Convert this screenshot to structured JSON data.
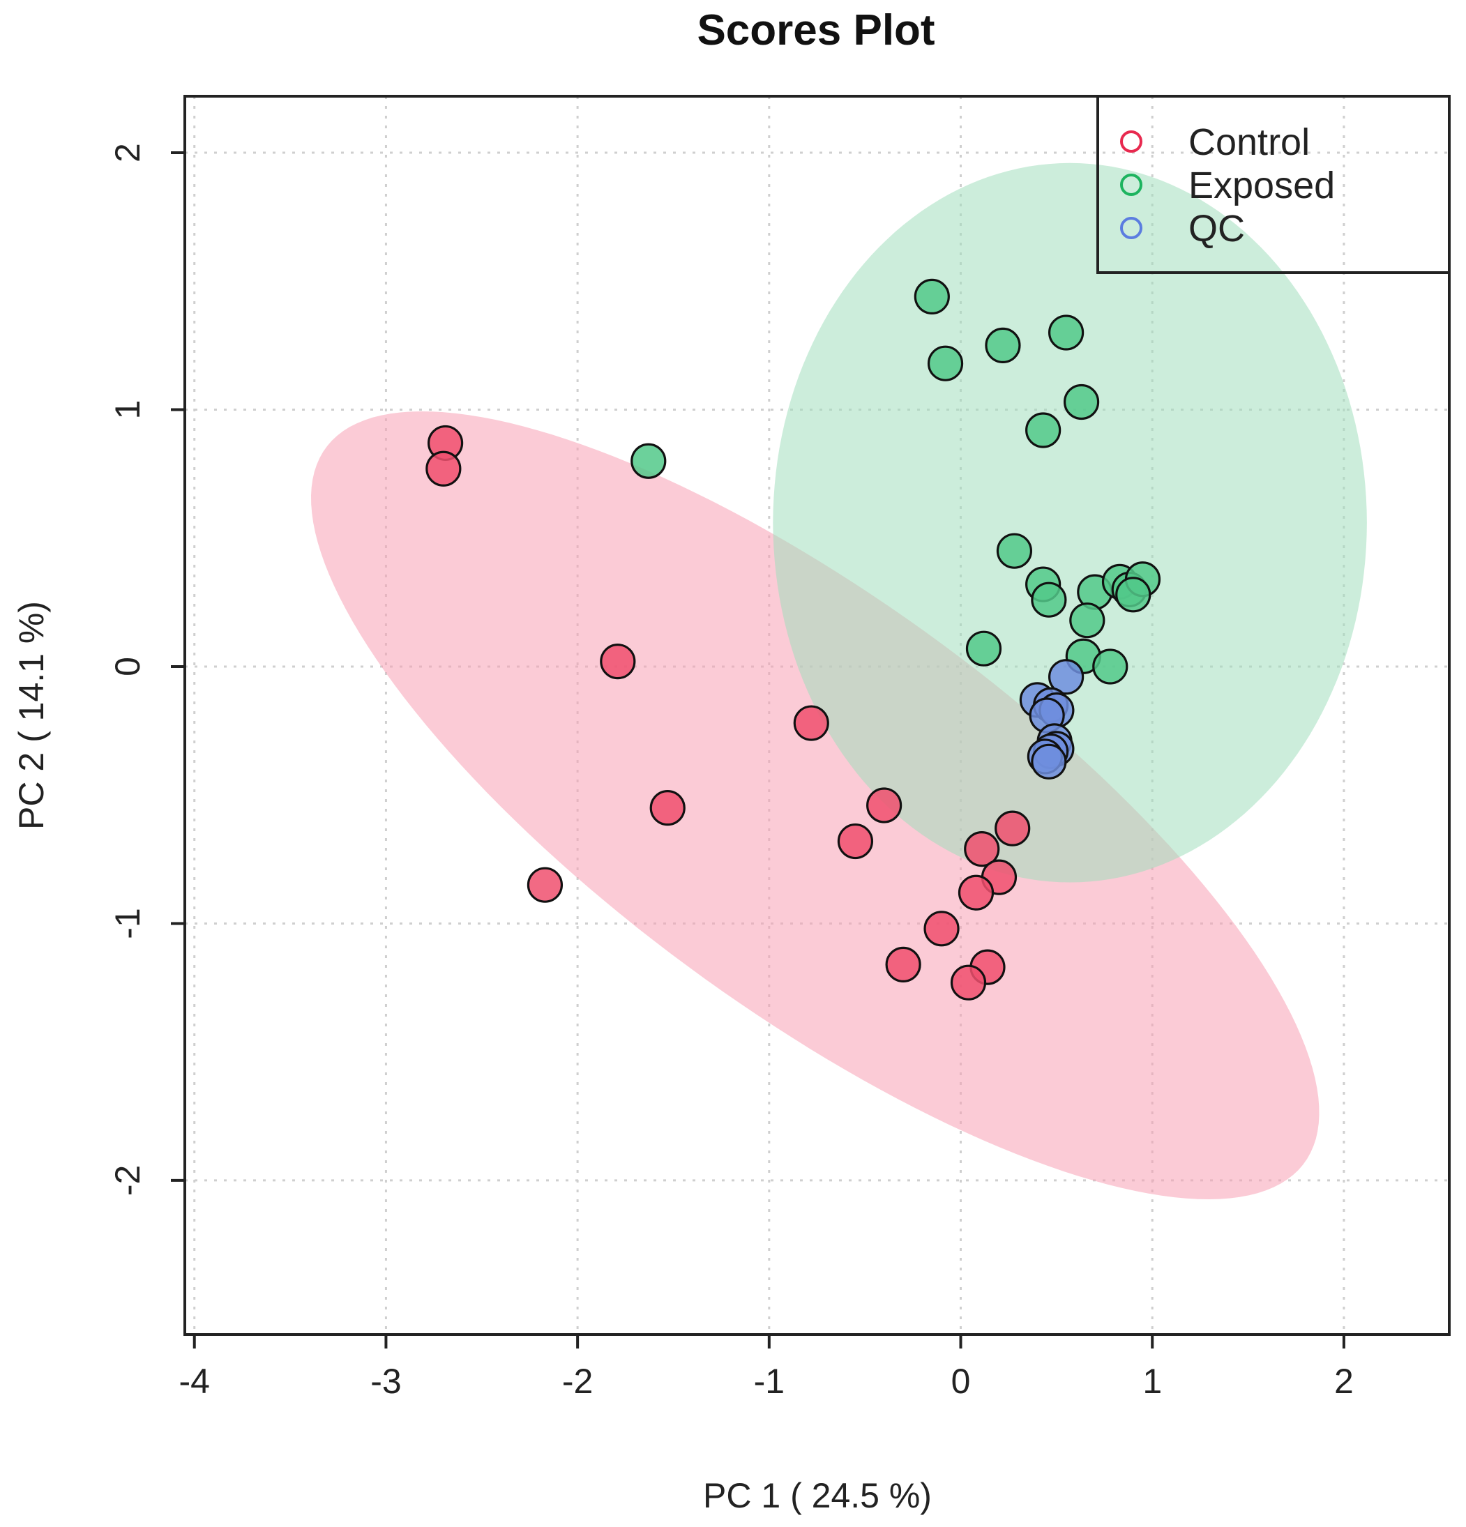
{
  "chart_data": {
    "type": "scatter",
    "title": "Scores Plot",
    "xlabel": "PC 1 ( 24.5 %)",
    "ylabel": "PC 2 ( 14.1 %)",
    "xlim": [
      -4.05,
      2.55
    ],
    "ylim": [
      -2.6,
      2.22
    ],
    "xticks": [
      -4,
      -3,
      -2,
      -1,
      0,
      1,
      2
    ],
    "yticks": [
      -2,
      -1,
      0,
      1,
      2
    ],
    "xtick_labels": [
      "-4",
      "-3",
      "-2",
      "-1",
      "0",
      "1",
      "2"
    ],
    "ytick_labels": [
      "-2",
      "-1",
      "0",
      "1",
      "2"
    ],
    "grid": true,
    "legend": {
      "position": "top-right",
      "entries": [
        "Control",
        "Exposed",
        "QC"
      ]
    },
    "series": [
      {
        "name": "Control",
        "marker_color": "#f0506e",
        "legend_color": "#e8294f",
        "fill_color": "#f7a1b5",
        "points": [
          [
            -2.69,
            0.87
          ],
          [
            -2.7,
            0.77
          ],
          [
            -1.79,
            0.02
          ],
          [
            -0.78,
            -0.22
          ],
          [
            -1.53,
            -0.55
          ],
          [
            -2.17,
            -0.85
          ],
          [
            -0.4,
            -0.54
          ],
          [
            -0.55,
            -0.68
          ],
          [
            0.27,
            -0.63
          ],
          [
            0.11,
            -0.71
          ],
          [
            0.2,
            -0.82
          ],
          [
            0.08,
            -0.88
          ],
          [
            -0.1,
            -1.02
          ],
          [
            -0.3,
            -1.16
          ],
          [
            0.14,
            -1.17
          ],
          [
            0.04,
            -1.23
          ]
        ],
        "ellipse": {
          "cx": -0.76,
          "cy": -0.54,
          "rx": 2.92,
          "ry": 0.865,
          "angle_deg": -27
        }
      },
      {
        "name": "Exposed",
        "marker_color": "#52c98a",
        "legend_color": "#1db45f",
        "fill_color": "#a3dfbd",
        "points": [
          [
            -0.15,
            1.44
          ],
          [
            0.55,
            1.3
          ],
          [
            0.22,
            1.25
          ],
          [
            -0.08,
            1.18
          ],
          [
            0.63,
            1.03
          ],
          [
            0.43,
            0.92
          ],
          [
            -1.63,
            0.8
          ],
          [
            0.28,
            0.45
          ],
          [
            0.43,
            0.32
          ],
          [
            0.46,
            0.26
          ],
          [
            0.7,
            0.29
          ],
          [
            0.83,
            0.33
          ],
          [
            0.88,
            0.3
          ],
          [
            0.95,
            0.34
          ],
          [
            0.9,
            0.28
          ],
          [
            0.66,
            0.18
          ],
          [
            0.12,
            0.07
          ],
          [
            0.64,
            0.04
          ],
          [
            0.78,
            0.0
          ]
        ],
        "ellipse": {
          "cx": 0.57,
          "cy": 0.56,
          "rx": 1.55,
          "ry": 1.4,
          "angle_deg": 0
        }
      },
      {
        "name": "QC",
        "marker_color": "#6f8ede",
        "legend_color": "#5b7de0",
        "fill_color": "#8fa8e8",
        "points": [
          [
            0.55,
            -0.04
          ],
          [
            0.4,
            -0.13
          ],
          [
            0.47,
            -0.15
          ],
          [
            0.5,
            -0.17
          ],
          [
            0.45,
            -0.19
          ],
          [
            0.49,
            -0.29
          ],
          [
            0.5,
            -0.32
          ],
          [
            0.47,
            -0.33
          ],
          [
            0.44,
            -0.35
          ],
          [
            0.46,
            -0.37
          ]
        ]
      }
    ]
  }
}
